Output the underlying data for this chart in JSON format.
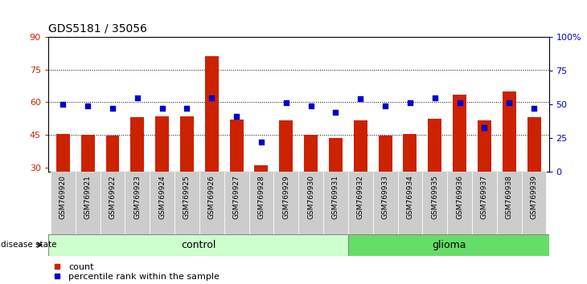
{
  "title": "GDS5181 / 35056",
  "samples": [
    "GSM769920",
    "GSM769921",
    "GSM769922",
    "GSM769923",
    "GSM769924",
    "GSM769925",
    "GSM769926",
    "GSM769927",
    "GSM769928",
    "GSM769929",
    "GSM769930",
    "GSM769931",
    "GSM769932",
    "GSM769933",
    "GSM769934",
    "GSM769935",
    "GSM769936",
    "GSM769937",
    "GSM769938",
    "GSM769939"
  ],
  "bar_values": [
    45.5,
    45.0,
    44.5,
    53.0,
    53.5,
    53.5,
    81.0,
    52.0,
    31.0,
    51.5,
    45.0,
    43.5,
    51.5,
    44.5,
    45.5,
    52.5,
    63.5,
    51.5,
    65.0,
    53.0
  ],
  "dot_values_pct": [
    50,
    49,
    47,
    55,
    47,
    47,
    55,
    41,
    22,
    51,
    49,
    44,
    54,
    49,
    51,
    55,
    51,
    33,
    51,
    47
  ],
  "bar_color": "#cc2200",
  "dot_color": "#0000cc",
  "ylim_left": [
    28,
    90
  ],
  "yticks_left": [
    30,
    45,
    60,
    75,
    90
  ],
  "ylim_right": [
    0,
    100
  ],
  "yticks_right": [
    0,
    25,
    50,
    75,
    100
  ],
  "control_count": 12,
  "glioma_count": 8,
  "control_label": "control",
  "glioma_label": "glioma",
  "disease_state_label": "disease state",
  "legend_bar_label": "count",
  "legend_dot_label": "percentile rank within the sample",
  "control_color": "#ccffcc",
  "glioma_color": "#66dd66",
  "tick_bg_color": "#cccccc",
  "plot_bg_color": "#ffffff"
}
